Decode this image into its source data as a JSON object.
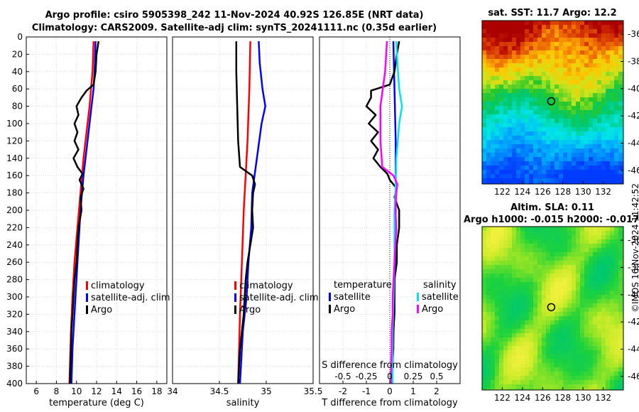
{
  "header": {
    "title_line1": "Argo profile: csiro 5905398_242 11-Nov-2024 40.92S 126.85E (NRT data)",
    "title_line2": "Climatology: CARS2009. Satellite-adj clim: synTS_20241111.nc (0.35d earlier)"
  },
  "footer": {
    "stamp": "©IMOS 16-Nov-2024 11:42:52"
  },
  "colors": {
    "climatology": "#ff0000",
    "satellite": "#0000ff",
    "argo": "#000000",
    "sat_salinity": "#00e5ee",
    "argo_salinity": "#ff00ff"
  },
  "chart_data": [
    {
      "type": "line",
      "id": "temperature",
      "xlabel": "temperature (deg C)",
      "xlim": [
        5,
        19
      ],
      "xticks": [
        6,
        8,
        10,
        12,
        14,
        16,
        18
      ],
      "ylim": [
        0,
        400
      ],
      "yticks": [
        0,
        20,
        40,
        60,
        80,
        100,
        120,
        140,
        160,
        180,
        200,
        220,
        240,
        260,
        280,
        300,
        320,
        340,
        360,
        380,
        400
      ],
      "y_reversed": true,
      "grid": true,
      "legend": {
        "placement": "lower-right",
        "labels": [
          "climatology",
          "satellite-adj. clim",
          "Argo"
        ]
      },
      "series": [
        {
          "name": "climatology",
          "color": "#ff0000",
          "depth": [
            5,
            40,
            80,
            100,
            140,
            180,
            220,
            260,
            300,
            340,
            380,
            400
          ],
          "values": [
            11.7,
            11.6,
            11.3,
            11.1,
            10.7,
            10.4,
            10.1,
            9.8,
            9.6,
            9.45,
            9.35,
            9.3
          ]
        },
        {
          "name": "satellite-adj. clim",
          "color": "#0000ff",
          "depth": [
            5,
            40,
            60,
            80,
            120,
            160,
            200,
            240,
            280,
            320,
            360,
            400
          ],
          "values": [
            11.9,
            11.8,
            11.7,
            11.5,
            11.1,
            10.7,
            10.4,
            10.2,
            10.0,
            9.8,
            9.6,
            9.5
          ]
        },
        {
          "name": "Argo",
          "color": "#000000",
          "depth": [
            5,
            20,
            40,
            55,
            62,
            70,
            80,
            90,
            100,
            110,
            120,
            130,
            140,
            150,
            158,
            165,
            175,
            185,
            200,
            220,
            240,
            260,
            280,
            300,
            320,
            340,
            360,
            380,
            400
          ],
          "values": [
            12.2,
            12.0,
            11.9,
            11.7,
            11.0,
            10.5,
            10.0,
            10.2,
            9.8,
            10.1,
            9.8,
            10.2,
            9.7,
            10.1,
            10.6,
            10.3,
            10.7,
            10.4,
            10.5,
            10.2,
            10.1,
            10.0,
            9.8,
            9.7,
            9.6,
            9.5,
            9.45,
            9.4,
            9.35
          ]
        }
      ]
    },
    {
      "type": "line",
      "id": "salinity",
      "xlabel": "salinity",
      "xlim": [
        34,
        35.5
      ],
      "xticks": [
        34,
        34.5,
        35,
        35.5
      ],
      "xticklabels": [
        "34",
        "34.5",
        "35",
        "35.5"
      ],
      "ylim": [
        0,
        400
      ],
      "y_reversed": true,
      "grid": true,
      "legend": {
        "placement": "lower-right",
        "labels": [
          "climatology",
          "satellite-adj. clim",
          "Argo"
        ]
      },
      "series": [
        {
          "name": "climatology",
          "color": "#ff0000",
          "depth": [
            5,
            60,
            120,
            160,
            200,
            260,
            320,
            400
          ],
          "values": [
            34.83,
            34.82,
            34.8,
            34.78,
            34.76,
            34.74,
            34.72,
            34.7
          ]
        },
        {
          "name": "satellite-adj. clim",
          "color": "#0000ff",
          "depth": [
            5,
            30,
            60,
            80,
            100,
            140,
            180,
            220,
            260,
            300,
            340,
            400
          ],
          "values": [
            34.92,
            34.93,
            34.96,
            34.99,
            34.95,
            34.9,
            34.85,
            34.84,
            34.81,
            34.79,
            34.75,
            34.72
          ]
        },
        {
          "name": "Argo",
          "color": "#000000",
          "depth": [
            5,
            40,
            80,
            120,
            150,
            160,
            170,
            180,
            200,
            220,
            240,
            260,
            280,
            300,
            320,
            340,
            360,
            400
          ],
          "values": [
            34.68,
            34.68,
            34.69,
            34.7,
            34.72,
            34.85,
            34.88,
            34.86,
            34.85,
            34.86,
            34.83,
            34.8,
            34.78,
            34.77,
            34.76,
            34.74,
            34.72,
            34.7
          ]
        }
      ]
    },
    {
      "type": "line",
      "id": "difference",
      "xlabel": "T difference from climatology",
      "xlim": [
        -3,
        3
      ],
      "xticks": [
        -2,
        -1,
        0,
        1,
        2
      ],
      "top_axis_label": "S difference from climatology",
      "top_ticks": [
        -0.5,
        -0.25,
        0,
        0.25,
        0.5
      ],
      "top_ticklabels": [
        "-0.5",
        "-0.25",
        "0",
        "0.25",
        "0.5"
      ],
      "ylim": [
        0,
        400
      ],
      "y_reversed": true,
      "grid": true,
      "legend": {
        "placement": "lower-center",
        "titles": [
          "temperature",
          "salinity"
        ],
        "labels": [
          "satellite",
          "Argo",
          "satellite",
          "Argo"
        ]
      },
      "series": [
        {
          "name": "temperature satellite",
          "color": "#0000ff",
          "depth": [
            5,
            60,
            120,
            200,
            300,
            400
          ],
          "values": [
            0.15,
            0.2,
            0.25,
            0.25,
            0.2,
            0.1
          ]
        },
        {
          "name": "temperature Argo",
          "color": "#000000",
          "depth": [
            5,
            20,
            40,
            55,
            62,
            70,
            80,
            90,
            100,
            110,
            120,
            130,
            140,
            150,
            158,
            165,
            175,
            185,
            200,
            220,
            240,
            260,
            280,
            300,
            320,
            340,
            360,
            380,
            400
          ],
          "values": [
            0.4,
            0.3,
            0.2,
            0.0,
            -0.8,
            -0.8,
            -1.0,
            -0.6,
            -0.9,
            -0.5,
            -0.8,
            -0.5,
            -0.7,
            -0.4,
            -0.1,
            0.0,
            0.3,
            0.2,
            0.4,
            0.4,
            0.3,
            0.3,
            0.2,
            0.2,
            0.2,
            0.15,
            0.15,
            0.1,
            0.1
          ]
        },
        {
          "name": "salinity satellite",
          "color": "#00e5ee",
          "depth": [
            5,
            30,
            60,
            80,
            100,
            140,
            180,
            200,
            260,
            300,
            340,
            400
          ],
          "values": [
            0.07,
            0.08,
            0.1,
            0.13,
            0.1,
            0.07,
            0.06,
            0.05,
            0.05,
            0.04,
            0.03,
            0.03
          ]
        },
        {
          "name": "salinity Argo",
          "color": "#ff00ff",
          "depth": [
            5,
            40,
            80,
            120,
            150,
            160,
            170,
            180,
            200,
            220,
            240,
            260,
            280,
            300,
            320,
            340,
            360,
            400
          ],
          "values": [
            -0.03,
            -0.05,
            -0.1,
            -0.1,
            -0.08,
            0.04,
            0.08,
            0.07,
            0.06,
            0.07,
            0.06,
            0.05,
            0.04,
            0.03,
            0.03,
            0.02,
            0.02,
            0.01
          ]
        }
      ]
    },
    {
      "type": "heatmap",
      "id": "sst_map",
      "title": "sat. SST: 11.7 Argo: 12.2",
      "xlim": [
        120,
        134
      ],
      "ylim": [
        -47,
        -35
      ],
      "xticks": [
        122,
        124,
        126,
        128,
        130,
        132
      ],
      "yticks": [
        -36,
        -38,
        -40,
        -42,
        -44,
        -46
      ],
      "marker": {
        "lon": 126.85,
        "lat": -40.92
      }
    },
    {
      "type": "heatmap",
      "id": "sla_map",
      "title_line1": "Altim. SLA: 0.11",
      "title_line2": "Argo h1000: -0.015 h2000: -0.017",
      "xlim": [
        120,
        134
      ],
      "ylim": [
        -47,
        -35
      ],
      "xticks": [
        122,
        124,
        126,
        128,
        130,
        132
      ],
      "yticks": [
        -36,
        -38,
        -40,
        -42,
        -44,
        -46
      ],
      "marker": {
        "lon": 126.85,
        "lat": -40.92
      }
    }
  ]
}
